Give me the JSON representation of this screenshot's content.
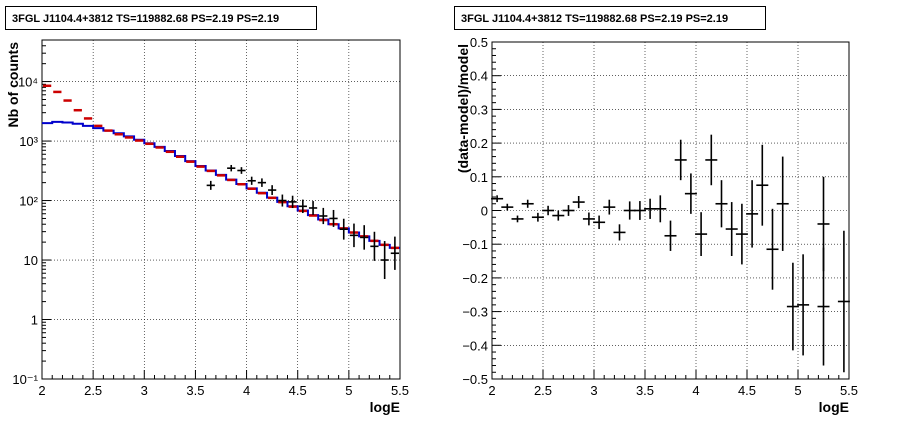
{
  "chart_data": [
    {
      "type": "step-histogram",
      "title": "3FGL J1104.4+3812 TS=119882.68 PS=2.19 PS=2.19",
      "xlabel": "logE",
      "ylabel": "Nb of counts",
      "xlim": [
        2,
        5.5
      ],
      "ylim": [
        0.1,
        50000
      ],
      "ylog": true,
      "grid": true,
      "xticks": [
        2,
        2.5,
        3,
        3.5,
        4,
        4.5,
        5,
        5.5
      ],
      "xtick_labels": [
        "2",
        "2.5",
        "3",
        "3.5",
        "4",
        "4.5",
        "5",
        "5.5"
      ],
      "yticks": [
        0.1,
        1,
        10,
        100,
        1000,
        10000
      ],
      "ytick_labels": [
        "10⁻¹",
        "1",
        "10",
        "10²",
        "10³",
        "10⁴"
      ],
      "bin_edges": [
        2.0,
        2.1,
        2.2,
        2.3,
        2.4,
        2.5,
        2.6,
        2.7,
        2.8,
        2.9,
        3.0,
        3.1,
        3.2,
        3.3,
        3.4,
        3.5,
        3.6,
        3.7,
        3.8,
        3.9,
        4.0,
        4.1,
        4.2,
        4.3,
        4.4,
        4.5,
        4.6,
        4.7,
        4.8,
        4.9,
        5.0,
        5.1,
        5.2,
        5.3,
        5.4,
        5.5
      ],
      "model_blue": [
        2000,
        2100,
        2050,
        1950,
        1800,
        1650,
        1500,
        1350,
        1200,
        1050,
        920,
        800,
        680,
        560,
        460,
        380,
        320,
        270,
        225,
        190,
        160,
        135,
        112,
        95,
        80,
        68,
        57,
        48,
        40,
        34,
        29,
        25,
        21,
        18,
        16
      ],
      "model_red": [
        8500,
        6700,
        4800,
        3300,
        2400,
        1800,
        1500,
        1300,
        1150,
        1020,
        900,
        780,
        660,
        545,
        450,
        372,
        315,
        265,
        222,
        188,
        158,
        133,
        111,
        94,
        79,
        67,
        56,
        47,
        40,
        34,
        29,
        25,
        21,
        18,
        16
      ],
      "data_points": [
        {
          "x": 3.65,
          "y": 180
        },
        {
          "x": 3.85,
          "y": 350
        },
        {
          "x": 3.95,
          "y": 320
        },
        {
          "x": 4.05,
          "y": 215
        },
        {
          "x": 4.15,
          "y": 200
        },
        {
          "x": 4.25,
          "y": 150
        },
        {
          "x": 4.35,
          "y": 100
        },
        {
          "x": 4.45,
          "y": 95
        },
        {
          "x": 4.55,
          "y": 80
        },
        {
          "x": 4.65,
          "y": 75
        },
        {
          "x": 4.75,
          "y": 55
        },
        {
          "x": 4.85,
          "y": 50
        },
        {
          "x": 4.95,
          "y": 33
        },
        {
          "x": 5.05,
          "y": 26
        },
        {
          "x": 5.15,
          "y": 24
        },
        {
          "x": 5.25,
          "y": 17
        },
        {
          "x": 5.35,
          "y": 10
        },
        {
          "x": 5.45,
          "y": 13
        }
      ]
    },
    {
      "type": "scatter-errorbar",
      "title": "3FGL J1104.4+3812 TS=119882.68 PS=2.19 PS=2.19",
      "xlabel": "logE",
      "ylabel": "(data-model)/model",
      "xlim": [
        2,
        5.5
      ],
      "ylim": [
        -0.5,
        0.5
      ],
      "grid": true,
      "xticks": [
        2,
        2.5,
        3,
        3.5,
        4,
        4.5,
        5,
        5.5
      ],
      "xtick_labels": [
        "2",
        "2.5",
        "3",
        "3.5",
        "4",
        "4.5",
        "5",
        "5.5"
      ],
      "yticks": [
        -0.5,
        -0.4,
        -0.3,
        -0.2,
        -0.1,
        0,
        0.1,
        0.2,
        0.3,
        0.4,
        0.5
      ],
      "ytick_labels": [
        "−0.5",
        "−0.4",
        "−0.3",
        "−0.2",
        "−0.1",
        "0",
        "0.1",
        "0.2",
        "0.3",
        "0.4",
        "0.5"
      ],
      "points": [
        {
          "x": 2.05,
          "y": 0.035,
          "err": 0.01
        },
        {
          "x": 2.15,
          "y": 0.01,
          "err": 0.01
        },
        {
          "x": 2.25,
          "y": -0.025,
          "err": 0.01
        },
        {
          "x": 2.35,
          "y": 0.02,
          "err": 0.012
        },
        {
          "x": 2.45,
          "y": -0.02,
          "err": 0.013
        },
        {
          "x": 2.55,
          "y": 0.0,
          "err": 0.014
        },
        {
          "x": 2.65,
          "y": -0.015,
          "err": 0.015
        },
        {
          "x": 2.75,
          "y": 0.0,
          "err": 0.016
        },
        {
          "x": 2.85,
          "y": 0.025,
          "err": 0.018
        },
        {
          "x": 2.95,
          "y": -0.025,
          "err": 0.019
        },
        {
          "x": 3.05,
          "y": -0.035,
          "err": 0.02
        },
        {
          "x": 3.15,
          "y": 0.01,
          "err": 0.022
        },
        {
          "x": 3.25,
          "y": -0.065,
          "err": 0.024
        },
        {
          "x": 3.35,
          "y": 0.0,
          "err": 0.027
        },
        {
          "x": 3.45,
          "y": 0.0,
          "err": 0.028
        },
        {
          "x": 3.55,
          "y": 0.005,
          "err": 0.03
        },
        {
          "x": 3.65,
          "y": 0.005,
          "err": 0.04
        },
        {
          "x": 3.75,
          "y": -0.075,
          "err": 0.045
        },
        {
          "x": 3.85,
          "y": 0.15,
          "err": 0.06
        },
        {
          "x": 3.95,
          "y": 0.05,
          "err": 0.06
        },
        {
          "x": 4.05,
          "y": -0.07,
          "err": 0.065
        },
        {
          "x": 4.15,
          "y": 0.15,
          "err": 0.075
        },
        {
          "x": 4.25,
          "y": 0.02,
          "err": 0.07
        },
        {
          "x": 4.35,
          "y": -0.055,
          "err": 0.08
        },
        {
          "x": 4.45,
          "y": -0.07,
          "err": 0.09
        },
        {
          "x": 4.55,
          "y": -0.01,
          "err": 0.1
        },
        {
          "x": 4.65,
          "y": 0.075,
          "err": 0.12
        },
        {
          "x": 4.75,
          "y": -0.115,
          "err": 0.12
        },
        {
          "x": 4.85,
          "y": 0.02,
          "err": 0.14
        },
        {
          "x": 4.95,
          "y": -0.285,
          "err": 0.13
        },
        {
          "x": 5.05,
          "y": -0.28,
          "err": 0.15
        },
        {
          "x": 5.25,
          "y": -0.04,
          "err": 0.14
        },
        {
          "x": 5.25,
          "y": -0.285,
          "err": 0.175
        },
        {
          "x": 5.45,
          "y": -0.27,
          "err": 0.21
        }
      ]
    }
  ]
}
